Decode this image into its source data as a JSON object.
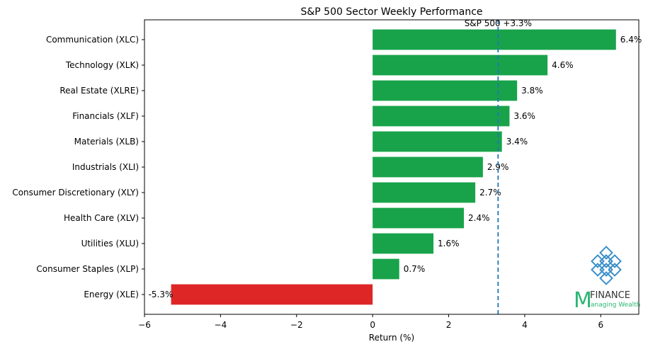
{
  "colors": {
    "positive": "#18a34a",
    "negative": "#de2626",
    "reference": "#1f77b4",
    "logo_green": "#2bb673",
    "logo_blue": "#3a8fc9",
    "logo_text": "#333333"
  },
  "chart_data": {
    "type": "bar",
    "orientation": "horizontal",
    "title": "S&P 500 Sector Weekly Performance",
    "xlabel": "Return (%)",
    "ylabel": "",
    "xlim": [
      -6,
      7
    ],
    "xticks": [
      -6,
      -4,
      -2,
      0,
      2,
      4,
      6
    ],
    "xtick_labels": [
      "−6",
      "−4",
      "−2",
      "0",
      "2",
      "4",
      "6"
    ],
    "categories": [
      "Communication (XLC)",
      "Technology (XLK)",
      "Real Estate (XLRE)",
      "Financials (XLF)",
      "Materials (XLB)",
      "Industrials (XLI)",
      "Consumer Discretionary (XLY)",
      "Health Care (XLV)",
      "Utilities (XLU)",
      "Consumer Staples (XLP)",
      "Energy (XLE)"
    ],
    "values": [
      6.4,
      4.6,
      3.8,
      3.6,
      3.4,
      2.9,
      2.7,
      2.4,
      1.6,
      0.7,
      -5.3
    ],
    "value_labels": [
      "6.4%",
      "4.6%",
      "3.8%",
      "3.6%",
      "3.4%",
      "2.9%",
      "2.7%",
      "2.4%",
      "1.6%",
      "0.7%",
      "-5.3%"
    ],
    "reference_line": {
      "value": 3.3,
      "label": "S&P 500 +3.3%",
      "style": "dashed"
    },
    "grid": false,
    "legend": "none"
  },
  "logo": {
    "letter": "M",
    "word": "FINANCE",
    "tagline": "anaging Wealth"
  }
}
